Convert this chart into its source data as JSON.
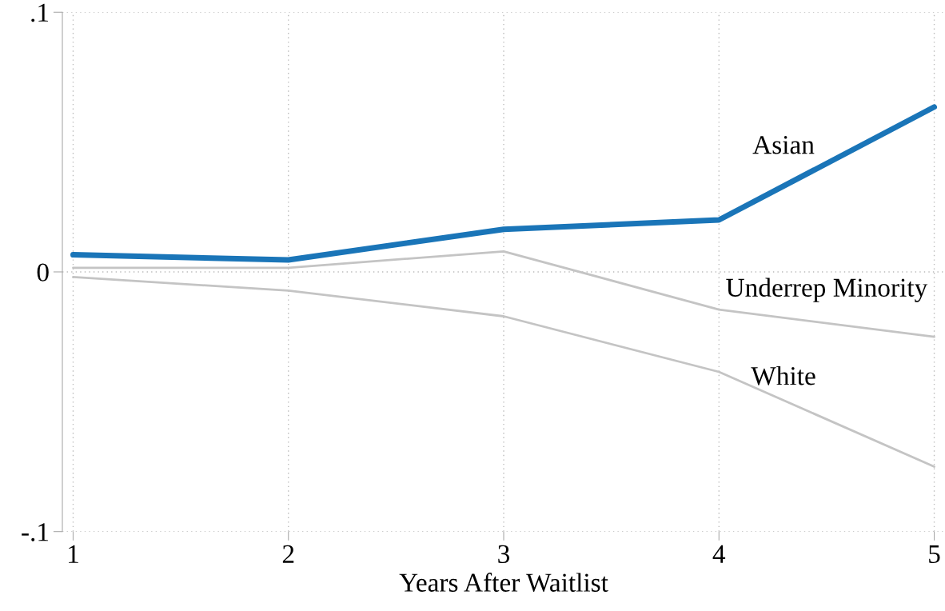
{
  "chart_data": {
    "type": "line",
    "xlabel": "Years After Waitlist",
    "x": [
      1,
      2,
      3,
      4,
      5
    ],
    "series": [
      {
        "name": "Asian",
        "color": "#1a75b8",
        "values": [
          0.0066,
          0.0046,
          0.0164,
          0.02,
          0.0635
        ]
      },
      {
        "name": "Underrep Minority",
        "color": "#c4c4c4",
        "values": [
          0.0016,
          0.0016,
          0.0079,
          -0.0145,
          -0.025
        ]
      },
      {
        "name": "White",
        "color": "#c4c4c4",
        "values": [
          -0.002,
          -0.0072,
          -0.0171,
          -0.0385,
          -0.075
        ]
      }
    ],
    "xlim": [
      0.95,
      5.05
    ],
    "xticks": [
      1,
      2,
      3,
      4,
      5
    ],
    "ylim": [
      -0.1,
      0.1
    ],
    "yticks": [
      {
        "value": -0.1,
        "label": "-.1"
      },
      0,
      {
        "value": 0.1,
        "label": ".1"
      }
    ],
    "grid": true,
    "legend": false,
    "marker": "none",
    "line_style": "solid"
  }
}
